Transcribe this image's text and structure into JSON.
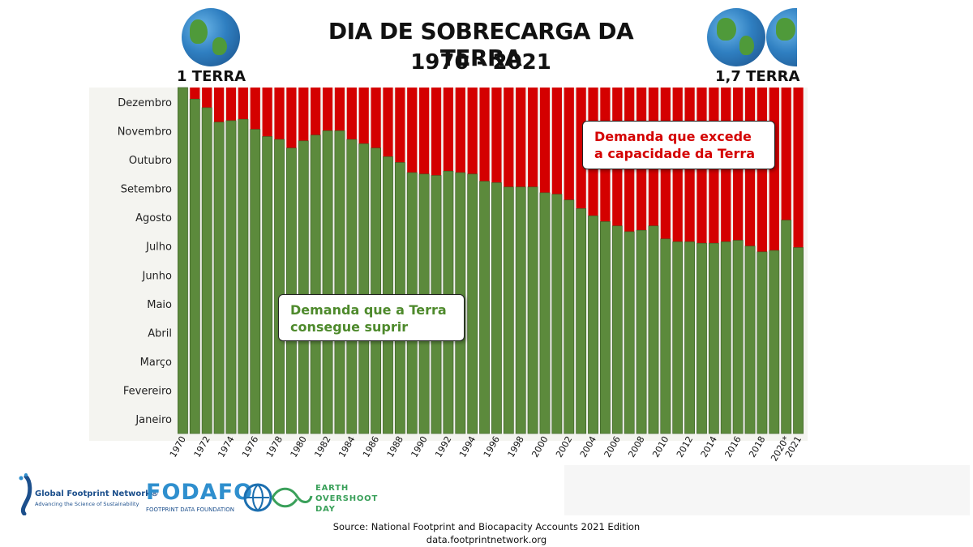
{
  "title": {
    "line1": "DIA DE SOBRECARGA DA TERRA",
    "line2": "1970 - 2021"
  },
  "earth_labels": {
    "left": "1 TERRA",
    "right": "1,7 TERRA"
  },
  "callouts": {
    "red": "Demanda que excede a capacidade da Terra",
    "green": "Demanda que a Terra consegue suprir"
  },
  "colors": {
    "green": "#5c8a3c",
    "red": "#d40000",
    "plot_bg": "#f4f4f0"
  },
  "footer": {
    "source": "Source: National Footprint and Biocapacity Accounts 2021 Edition",
    "url": "data.footprintnetwork.org"
  },
  "logos": {
    "gfn_name": "Global Footprint Network®",
    "gfn_tagline": "Advancing the Science of Sustainability",
    "fodafo_name": "FODAFO",
    "fodafo_tagline": "FOOTPRINT DATA FOUNDATION",
    "eod_line1": "EARTH",
    "eod_line2": "OVERSHOOT",
    "eod_line3": "DAY"
  },
  "chart_data": {
    "type": "bar",
    "stacked": true,
    "x_label_mode": "every other year rotated, plus 2020* and 2021",
    "categories": [
      "1970",
      "1971",
      "1972",
      "1973",
      "1974",
      "1975",
      "1976",
      "1977",
      "1978",
      "1979",
      "1980",
      "1981",
      "1982",
      "1983",
      "1984",
      "1985",
      "1986",
      "1987",
      "1988",
      "1989",
      "1990",
      "1991",
      "1992",
      "1993",
      "1994",
      "1995",
      "1996",
      "1997",
      "1998",
      "1999",
      "2000",
      "2001",
      "2002",
      "2003",
      "2004",
      "2005",
      "2006",
      "2007",
      "2008",
      "2009",
      "2010",
      "2011",
      "2012",
      "2013",
      "2014",
      "2015",
      "2016",
      "2017",
      "2018",
      "2019",
      "2020*",
      "2021"
    ],
    "x_tick_labels": [
      "1970",
      "",
      "1972",
      "",
      "1974",
      "",
      "1976",
      "",
      "1978",
      "",
      "1980",
      "",
      "1982",
      "",
      "1984",
      "",
      "1986",
      "",
      "1988",
      "",
      "1990",
      "",
      "1992",
      "",
      "1994",
      "",
      "1996",
      "",
      "1998",
      "",
      "2000",
      "",
      "2002",
      "",
      "2004",
      "",
      "2006",
      "",
      "2008",
      "",
      "2010",
      "",
      "2012",
      "",
      "2014",
      "",
      "2016",
      "",
      "2018",
      "",
      "2020*",
      "2021"
    ],
    "y_axis": {
      "unit": "months",
      "range": [
        0,
        12
      ],
      "tick_labels": [
        "Janeiro",
        "Fevereiro",
        "Março",
        "Abril",
        "Maio",
        "Junho",
        "Julho",
        "Agosto",
        "Setembro",
        "Outubro",
        "Novembro",
        "Dezembro"
      ]
    },
    "series": [
      {
        "name": "Demanda que a Terra consegue suprir",
        "color": "#5c8a3c",
        "values": [
          12.0,
          11.6,
          11.3,
          10.8,
          10.85,
          10.9,
          10.55,
          10.3,
          10.2,
          9.9,
          10.15,
          10.35,
          10.5,
          10.5,
          10.2,
          10.05,
          9.9,
          9.6,
          9.4,
          9.05,
          9.0,
          8.95,
          9.1,
          9.05,
          9.0,
          8.75,
          8.7,
          8.55,
          8.55,
          8.55,
          8.35,
          8.3,
          8.1,
          7.8,
          7.55,
          7.35,
          7.2,
          7.0,
          7.05,
          7.2,
          6.75,
          6.65,
          6.65,
          6.6,
          6.6,
          6.65,
          6.7,
          6.5,
          6.3,
          6.35,
          7.4,
          6.45
        ]
      },
      {
        "name": "Demanda que excede a capacidade da Terra",
        "color": "#d40000",
        "values_note": "12 minus green value",
        "values": [
          0.0,
          0.4,
          0.7,
          1.2,
          1.15,
          1.1,
          1.45,
          1.7,
          1.8,
          2.1,
          1.85,
          1.65,
          1.5,
          1.5,
          1.8,
          1.95,
          2.1,
          2.4,
          2.6,
          2.95,
          3.0,
          3.05,
          2.9,
          2.95,
          3.0,
          3.25,
          3.3,
          3.45,
          3.45,
          3.45,
          3.65,
          3.7,
          3.9,
          4.2,
          4.45,
          4.65,
          4.8,
          5.0,
          4.95,
          4.8,
          5.25,
          5.35,
          5.35,
          5.4,
          5.4,
          5.35,
          5.3,
          5.5,
          5.7,
          5.65,
          4.6,
          5.55
        ]
      }
    ],
    "legend": "none (callout boxes inside plot)",
    "grid": false
  }
}
